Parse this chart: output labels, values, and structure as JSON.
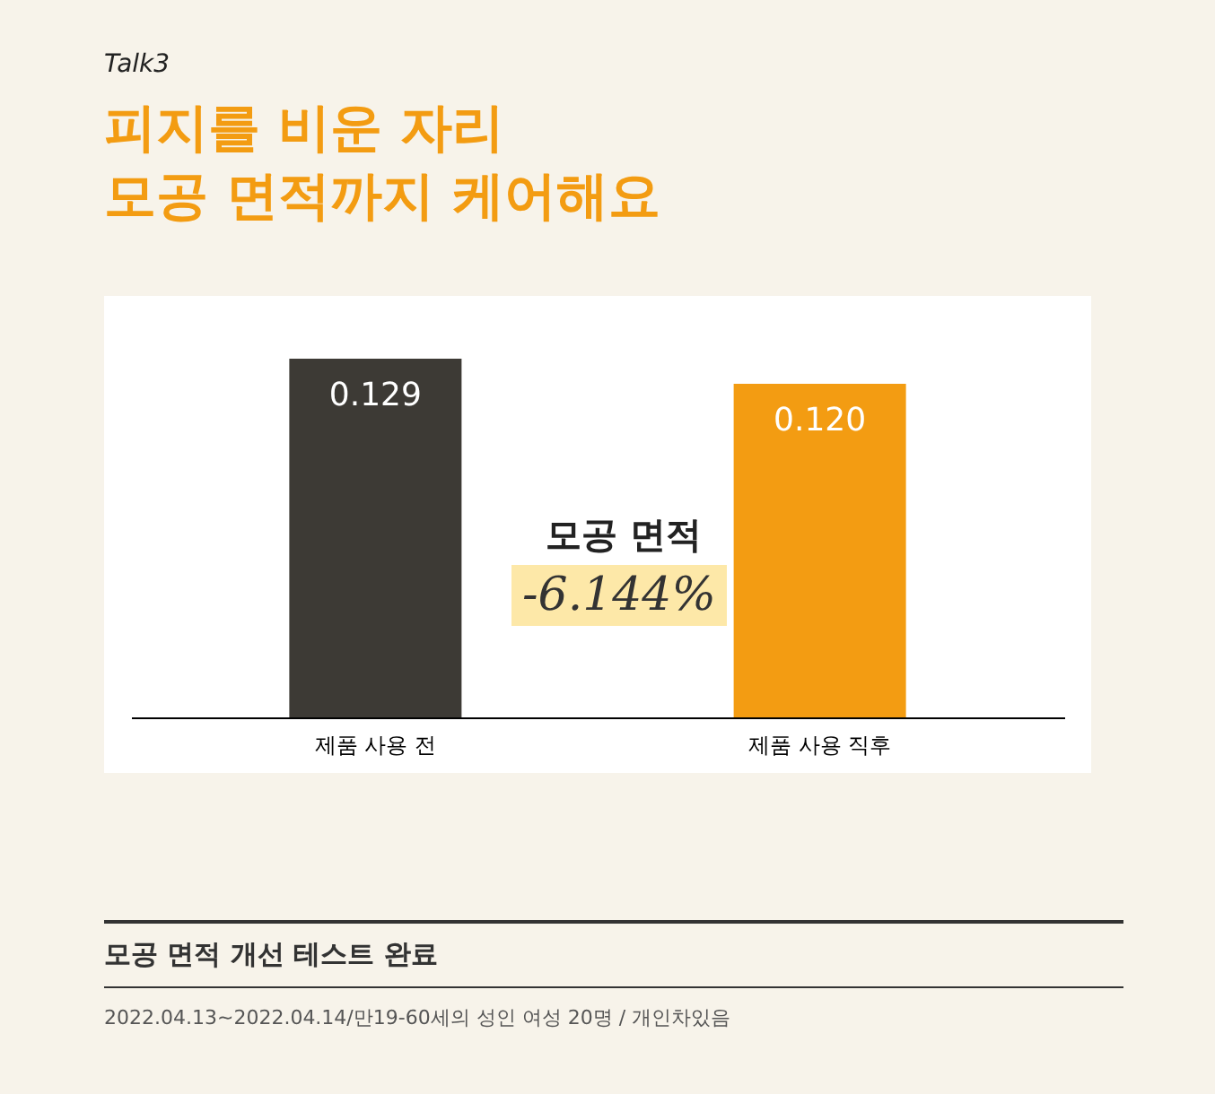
{
  "chart_data": {
    "type": "bar",
    "subtitle": "Talk3",
    "title": "피지를 비운 자리\n모공 면적까지 케어해요",
    "categories": [
      "제품 사용 전",
      "제품 사용 직후"
    ],
    "values": [
      0.129,
      0.12
    ],
    "colors": [
      "#3d3a35",
      "#f39c12"
    ],
    "value_labels": [
      "0.129",
      "0.120"
    ],
    "annotations": [
      "모공 면적",
      "-6.144%",
      "모공 면적 개선 테스트 완료",
      "2022.04.13~2022.04.14/만19-60세의 성인 여성 20명 / 개인차있음"
    ]
  }
}
